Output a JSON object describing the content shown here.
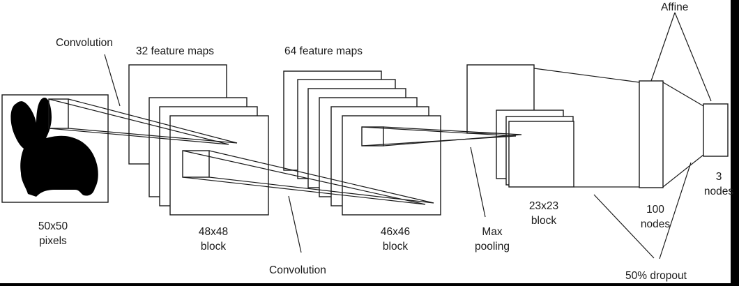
{
  "labels": {
    "convolution_1": "Convolution",
    "feature_maps_32": "32 feature maps",
    "feature_maps_64": "64 feature maps",
    "affine": "Affine",
    "input_size": "50x50",
    "input_unit": "pixels",
    "block_48_size": "48x48",
    "block_48_unit": "block",
    "block_46_size": "46x46",
    "block_46_unit": "block",
    "max_pooling_1": "Max",
    "max_pooling_2": "pooling",
    "block_23_size": "23x23",
    "block_23_unit": "block",
    "hidden_count": "100",
    "hidden_unit": "nodes",
    "output_count": "3",
    "output_unit": "nodes",
    "convolution_2": "Convolution",
    "dropout": "50% dropout"
  },
  "colors": {
    "background": "#ffffff",
    "stroke": "#1a1a1a",
    "silhouette": "#000000"
  },
  "icons": {
    "input_image": "rabbit-silhouette-icon"
  }
}
